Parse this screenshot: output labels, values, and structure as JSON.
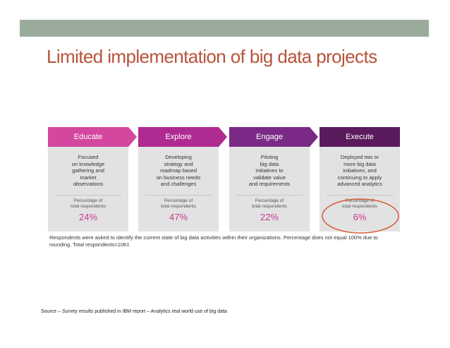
{
  "title": "Limited implementation of big data projects",
  "colors": {
    "educate": "#d4479e",
    "explore": "#b02b91",
    "engage": "#7a2a86",
    "execute": "#5a1a5e",
    "pct": "#c9388f",
    "circle": "#d9583a"
  },
  "stages": [
    {
      "name": "Educate",
      "description": "Focused\non knowledge\ngathering and\nmarket\nobservations",
      "pct_label": "Percentage of\ntotal respondents",
      "pct": "24%"
    },
    {
      "name": "Explore",
      "description": "Developing\nstrategy and\nroadmap based\non business needs\nand challenges",
      "pct_label": "Percentage of\ntotal respondents",
      "pct": "47%"
    },
    {
      "name": "Engage",
      "description": "Piloting\nbig data\ninitiatives to\nvalidate value\nand requirements",
      "pct_label": "Percentage of\ntotal respondents",
      "pct": "22%"
    },
    {
      "name": "Execute",
      "description": "Deployed two or\nmore big data\ninitiatives, and\ncontinuing to apply\nadvanced analytics",
      "pct_label": "Percentage of\ntotal respondents",
      "pct": "6%"
    }
  ],
  "footnote": "Respondents were asked to identify the current state of big data activities within their organizations. Percentage does not equal 100% due to rounding. Total respondents=1061",
  "source": "Source – Survey results published in IBM report – Analytics real world use of big data"
}
